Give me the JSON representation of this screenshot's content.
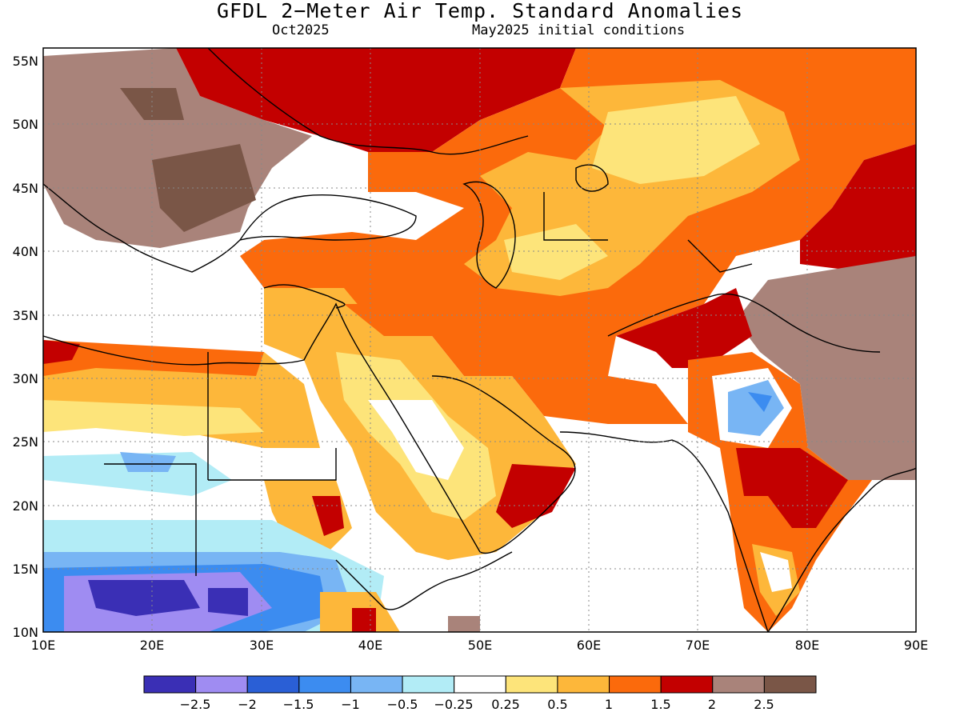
{
  "header": {
    "title": "GFDL 2−Meter Air Temp. Standard Anomalies",
    "valid_month": "Oct2025",
    "init_conditions": "May2025 initial conditions"
  },
  "map": {
    "lon_ticks": [
      "10E",
      "20E",
      "30E",
      "40E",
      "50E",
      "60E",
      "70E",
      "80E",
      "90E"
    ],
    "lat_ticks": [
      "55N",
      "50N",
      "45N",
      "40N",
      "35N",
      "30N",
      "25N",
      "20N",
      "15N",
      "10N"
    ],
    "lon_range": [
      10,
      90
    ],
    "lat_range": [
      10,
      56
    ],
    "grid": "dotted"
  },
  "colorbar": {
    "colors": [
      "#3a2fb5",
      "#9f8cf2",
      "#2a5fd6",
      "#3c8cf0",
      "#78b5f4",
      "#b2ecf6",
      "#ffffff",
      "#fde47a",
      "#fdb73a",
      "#fb6a0c",
      "#c30000",
      "#a9837a",
      "#7a5647"
    ],
    "labels": [
      "−2.5",
      "−2",
      "−1.5",
      "−1",
      "−0.5",
      "−0.25",
      "0.25",
      "0.5",
      "1",
      "1.5",
      "2",
      "2.5"
    ]
  }
}
